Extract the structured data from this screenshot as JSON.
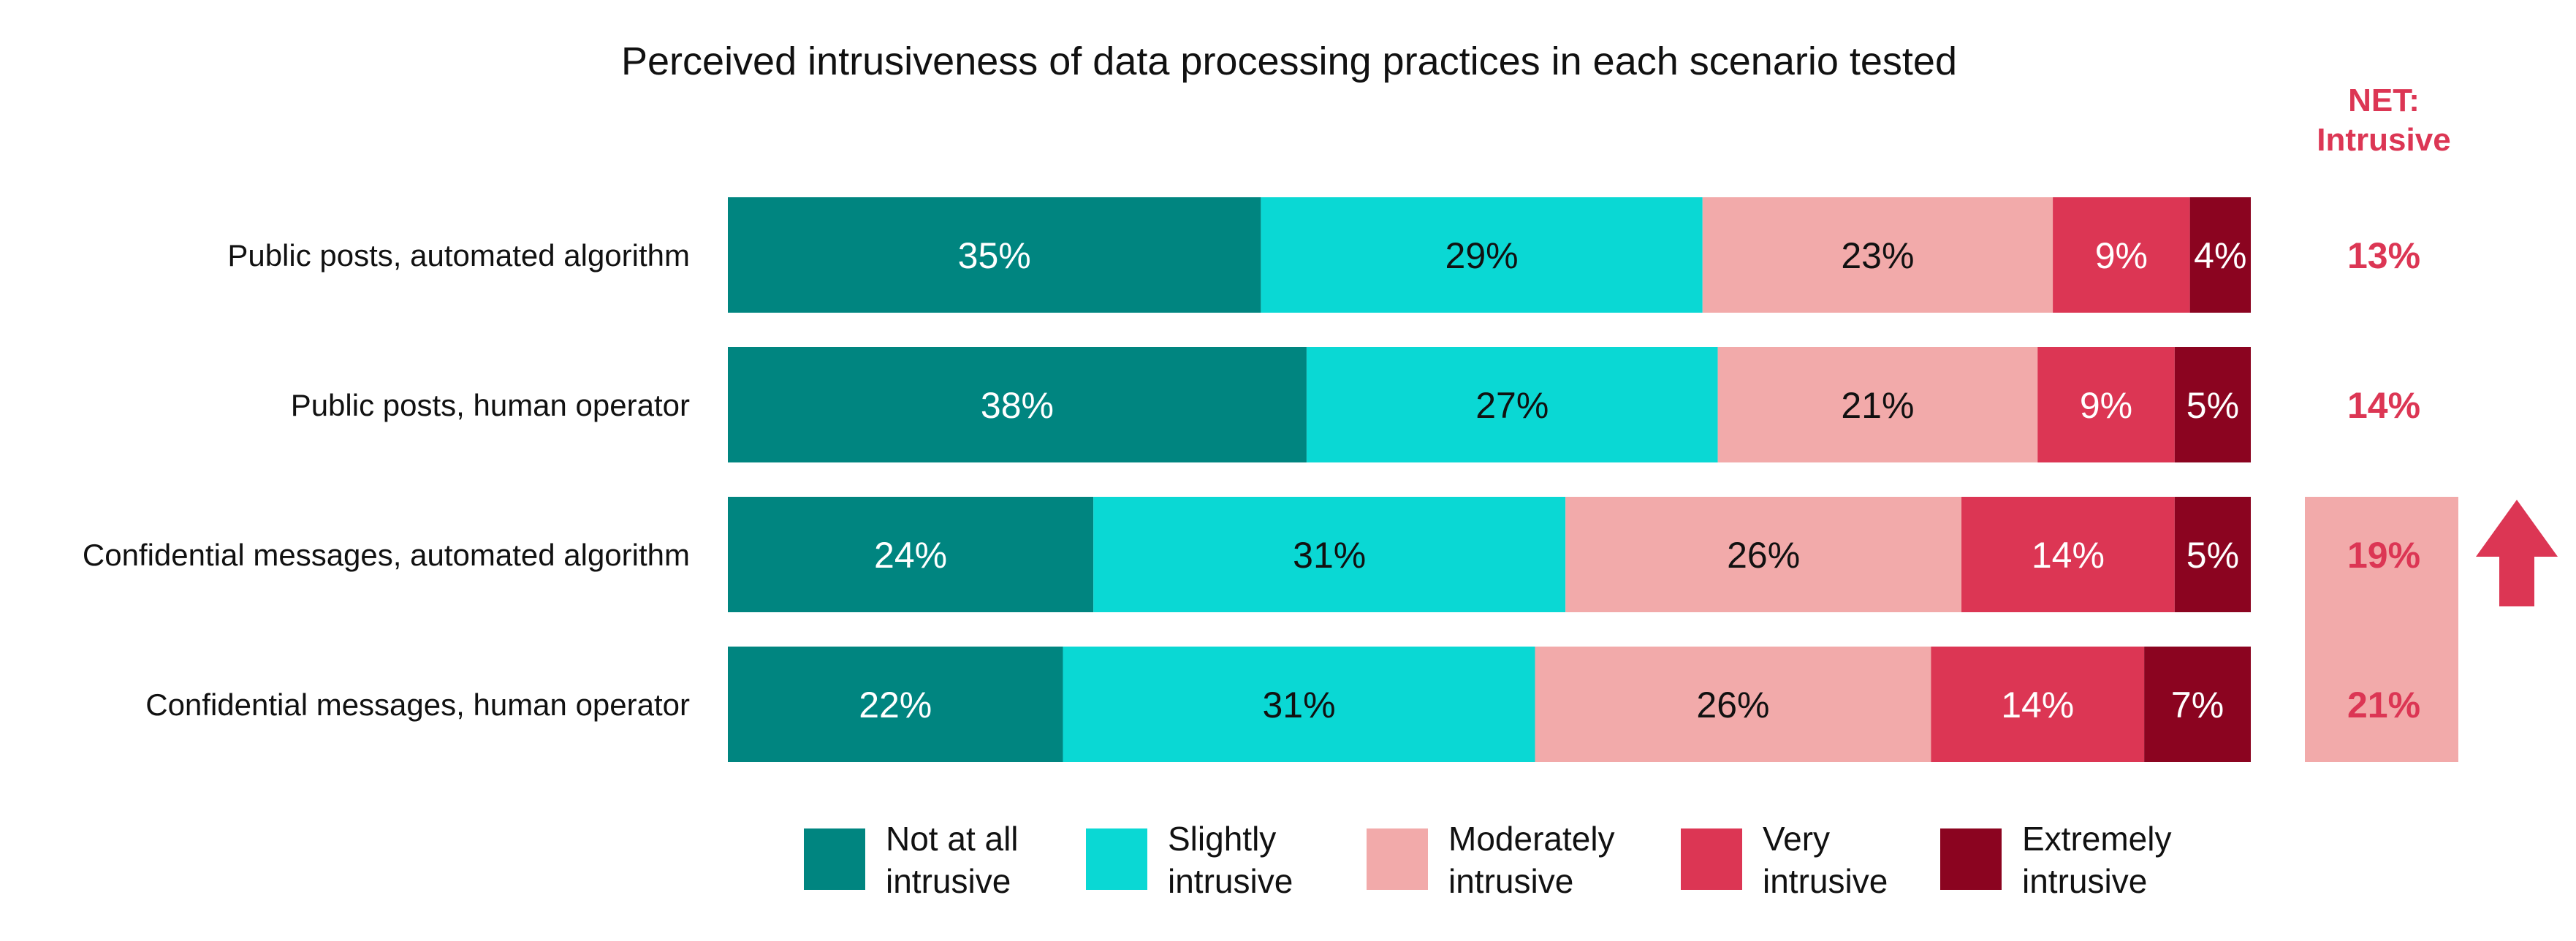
{
  "chart_data": {
    "type": "bar",
    "orientation": "horizontal",
    "stacked": true,
    "title": "Perceived intrusiveness of data processing practices in each scenario tested",
    "categories": [
      "Public posts, automated algorithm",
      "Public posts, human operator",
      "Confidential messages, automated algorithm",
      "Confidential messages, human operator"
    ],
    "series": [
      {
        "name": "Not at all intrusive",
        "legend_lines": [
          "Not at all",
          "intrusive"
        ],
        "color": "#008580",
        "text_color": "#ffffff",
        "values": [
          35,
          38,
          24,
          22
        ]
      },
      {
        "name": "Slightly intrusive",
        "legend_lines": [
          "Slightly",
          "intrusive"
        ],
        "color": "#0ad8d4",
        "text_color": "#111111",
        "values": [
          29,
          27,
          31,
          31
        ]
      },
      {
        "name": "Moderately intrusive",
        "legend_lines": [
          "Moderately",
          "intrusive"
        ],
        "color": "#f2aaaa",
        "text_color": "#111111",
        "values": [
          23,
          21,
          26,
          26
        ]
      },
      {
        "name": "Very intrusive",
        "legend_lines": [
          "Very",
          "intrusive"
        ],
        "color": "#dc3654",
        "text_color": "#ffffff",
        "values": [
          9,
          9,
          14,
          14
        ]
      },
      {
        "name": "Extremely intrusive",
        "legend_lines": [
          "Extremely",
          "intrusive"
        ],
        "color": "#8b0420",
        "text_color": "#ffffff",
        "values": [
          4,
          5,
          5,
          7
        ]
      }
    ],
    "value_suffix": "%",
    "net": {
      "header_lines": [
        "NET:",
        "Intrusive"
      ],
      "values": [
        13,
        14,
        19,
        21
      ],
      "highlighted": [
        false,
        false,
        true,
        true
      ],
      "text_color": "#dc3654",
      "highlight_color": "#f2aaaa"
    },
    "annotation": {
      "type": "up-arrow",
      "color": "#dc3654"
    },
    "legend_position": "bottom",
    "grid": false
  }
}
